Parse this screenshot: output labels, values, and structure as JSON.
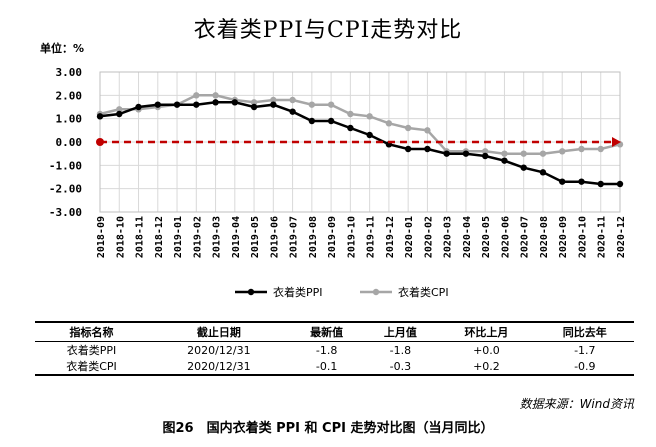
{
  "title": "衣着类PPI与CPI走势对比",
  "unit_label": "单位：%",
  "chart_data": {
    "type": "line",
    "title": "衣着类PPI与CPI走势对比",
    "ylabel": "单位：%",
    "ylim": [
      -3,
      3
    ],
    "yticks": [
      "3.00",
      "2.00",
      "1.00",
      "0.00",
      "-1.00",
      "-2.00",
      "-3.00"
    ],
    "grid": true,
    "legend_position": "bottom",
    "categories": [
      "2018-09",
      "2018-10",
      "2018-11",
      "2018-12",
      "2019-01",
      "2019-02",
      "2019-03",
      "2019-04",
      "2019-05",
      "2019-06",
      "2019-07",
      "2019-08",
      "2019-09",
      "2019-10",
      "2019-11",
      "2019-12",
      "2020-01",
      "2020-02",
      "2020-03",
      "2020-04",
      "2020-05",
      "2020-06",
      "2020-07",
      "2020-08",
      "2020-09",
      "2020-10",
      "2020-11",
      "2020-12"
    ],
    "series": [
      {
        "name": "衣着类PPI",
        "color": "#000000",
        "values": [
          1.1,
          1.2,
          1.5,
          1.6,
          1.6,
          1.6,
          1.7,
          1.7,
          1.5,
          1.6,
          1.3,
          0.9,
          0.9,
          0.6,
          0.3,
          -0.1,
          -0.3,
          -0.3,
          -0.5,
          -0.5,
          -0.6,
          -0.8,
          -1.1,
          -1.3,
          -1.7,
          -1.7,
          -1.8,
          -1.8
        ]
      },
      {
        "name": "衣着类CPI",
        "color": "#a6a6a6",
        "values": [
          1.2,
          1.4,
          1.4,
          1.5,
          1.6,
          2.0,
          2.0,
          1.8,
          1.7,
          1.8,
          1.8,
          1.6,
          1.6,
          1.2,
          1.1,
          0.8,
          0.6,
          0.5,
          -0.4,
          -0.4,
          -0.4,
          -0.5,
          -0.5,
          -0.5,
          -0.4,
          -0.3,
          -0.3,
          -0.1
        ]
      }
    ],
    "reference_line": {
      "value": 0.0,
      "color": "#c00000"
    }
  },
  "table": {
    "headers": [
      "指标名称",
      "截止日期",
      "最新值",
      "上月值",
      "环比上月",
      "同比去年"
    ],
    "rows": [
      [
        "衣着类PPI",
        "2020/12/31",
        "-1.8",
        "-1.8",
        "+0.0",
        "-1.7"
      ],
      [
        "衣着类CPI",
        "2020/12/31",
        "-0.1",
        "-0.3",
        "+0.2",
        "-0.9"
      ]
    ]
  },
  "source": "数据来源：Wind资讯",
  "caption": "图26　国内衣着类 PPI 和 CPI 走势对比图（当月同比）"
}
